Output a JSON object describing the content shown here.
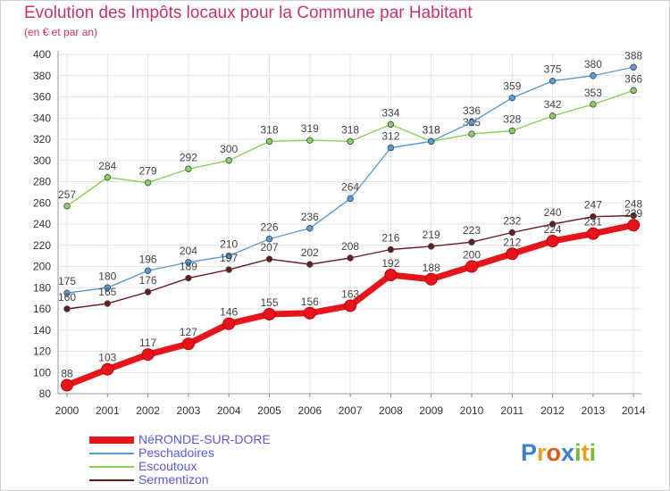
{
  "title": "Evolution des Impôts locaux pour la Commune par Habitant",
  "subtitle": "(en € et par an)",
  "logo": {
    "letters": [
      "P",
      "r",
      "o",
      "x",
      "i",
      "t",
      "i"
    ],
    "colors": [
      "#3a7fd0",
      "#f0a020",
      "#e05a1a",
      "#3a7fd0",
      "#7ab838",
      "#f0a020",
      "#7ab838"
    ]
  },
  "chart_data": {
    "type": "line",
    "title": "Evolution des Impôts locaux pour la Commune par Habitant",
    "subtitle": "(en € et par an)",
    "x": [
      "2000",
      "2001",
      "2002",
      "2003",
      "2004",
      "2005",
      "2006",
      "2007",
      "2008",
      "2009",
      "2010",
      "2011",
      "2012",
      "2013",
      "2014"
    ],
    "ylim": [
      80,
      400
    ],
    "yticks": [
      80,
      100,
      120,
      140,
      160,
      180,
      200,
      220,
      240,
      260,
      280,
      300,
      320,
      340,
      360,
      380,
      400
    ],
    "grid": true,
    "legend_position": "bottom-left",
    "series": [
      {
        "name": "NéRONDE-SUR-DORE",
        "color": "#e8141c",
        "values": [
          88,
          103,
          117,
          127,
          146,
          155,
          156,
          163,
          192,
          188,
          200,
          212,
          224,
          231,
          239
        ]
      },
      {
        "name": "Peschadoires",
        "color": "#5b9bd5",
        "values": [
          175,
          180,
          196,
          204,
          210,
          226,
          236,
          264,
          312,
          318,
          336,
          359,
          375,
          380,
          388
        ]
      },
      {
        "name": "Escoutoux",
        "color": "#8ccf5a",
        "values": [
          257,
          284,
          279,
          292,
          300,
          318,
          319,
          318,
          334,
          318,
          325,
          328,
          342,
          353,
          366
        ]
      },
      {
        "name": "Sermentizon",
        "color": "#6b1a1a",
        "values": [
          160,
          165,
          176,
          189,
          197,
          207,
          202,
          208,
          216,
          219,
          223,
          232,
          240,
          247,
          248
        ]
      }
    ]
  }
}
